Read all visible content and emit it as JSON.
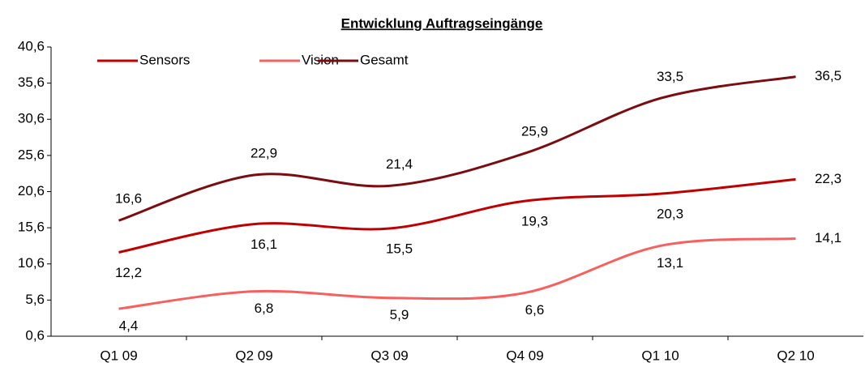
{
  "chart_data": {
    "type": "line",
    "title": "Entwicklung Auftragseingänge",
    "categories": [
      "Q1 09",
      "Q2 09",
      "Q3 09",
      "Q4 09",
      "Q1 10",
      "Q2 10"
    ],
    "series": [
      {
        "name": "Sensors",
        "color": "#c00000",
        "values": [
          12.2,
          16.1,
          15.5,
          19.3,
          20.3,
          22.3
        ],
        "value_labels": [
          "12,2",
          "16,1",
          "15,5",
          "19,3",
          "20,3",
          "22,3"
        ]
      },
      {
        "name": "Vision",
        "color": "#f86060",
        "values": [
          4.4,
          6.8,
          5.9,
          6.6,
          13.1,
          14.1
        ],
        "value_labels": [
          "4,4",
          "6,8",
          "5,9",
          "6,6",
          "13,1",
          "14,1"
        ]
      },
      {
        "name": "Gesamt",
        "color": "#7b0c10",
        "values": [
          16.6,
          22.9,
          21.4,
          25.9,
          33.5,
          36.5
        ],
        "value_labels": [
          "16,6",
          "22,9",
          "21,4",
          "25,9",
          "33,5",
          "36,5"
        ]
      }
    ],
    "ylim": [
      0.6,
      40.6
    ],
    "yticks": [
      {
        "value": 0.6,
        "label": "0,6"
      },
      {
        "value": 5.6,
        "label": "5,6"
      },
      {
        "value": 10.6,
        "label": "10,6"
      },
      {
        "value": 15.6,
        "label": "15,6"
      },
      {
        "value": 20.6,
        "label": "20,6"
      },
      {
        "value": 25.6,
        "label": "25,6"
      },
      {
        "value": 30.6,
        "label": "30,6"
      },
      {
        "value": 35.6,
        "label": "35,6"
      },
      {
        "value": 40.6,
        "label": "40,6"
      }
    ],
    "legend": "top-left",
    "grid": false
  }
}
